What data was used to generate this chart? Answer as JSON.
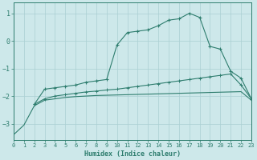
{
  "line1_x": [
    0,
    1,
    2,
    3,
    4,
    5,
    6,
    7,
    8,
    9,
    10,
    11,
    12,
    13,
    14,
    15,
    16,
    17,
    18,
    19,
    20,
    21,
    22,
    23
  ],
  "line1_y": [
    -3.4,
    -3.05,
    -2.35,
    -2.15,
    -2.1,
    -2.05,
    -2.02,
    -2.0,
    -1.98,
    -1.97,
    -1.96,
    -1.95,
    -1.94,
    -1.93,
    -1.92,
    -1.91,
    -1.9,
    -1.89,
    -1.88,
    -1.87,
    -1.86,
    -1.85,
    -1.84,
    -2.15
  ],
  "line2_x": [
    2,
    3,
    4,
    5,
    6,
    7,
    8,
    9,
    10,
    11,
    12,
    13,
    14,
    15,
    16,
    17,
    18,
    19,
    20,
    21,
    22,
    23
  ],
  "line2_y": [
    -2.3,
    -1.75,
    -1.7,
    -1.65,
    -1.6,
    -1.5,
    -1.45,
    -1.4,
    -0.15,
    0.3,
    0.35,
    0.4,
    0.55,
    0.75,
    0.8,
    1.0,
    0.85,
    -0.2,
    -0.3,
    -1.1,
    -1.35,
    -2.1
  ],
  "line3_x": [
    2,
    3,
    4,
    5,
    6,
    7,
    8,
    9,
    10,
    11,
    12,
    13,
    14,
    15,
    16,
    17,
    18,
    19,
    20,
    21,
    22,
    23
  ],
  "line3_y": [
    -2.3,
    -2.1,
    -2.0,
    -1.95,
    -1.9,
    -1.85,
    -1.82,
    -1.78,
    -1.75,
    -1.7,
    -1.65,
    -1.6,
    -1.55,
    -1.5,
    -1.45,
    -1.4,
    -1.35,
    -1.3,
    -1.25,
    -1.2,
    -1.6,
    -2.1
  ],
  "color": "#2e7d6e",
  "bg_color": "#cde8ea",
  "grid_color": "#aacfd3",
  "xlabel": "Humidex (Indice chaleur)",
  "xlim": [
    0,
    23
  ],
  "ylim": [
    -3.6,
    1.4
  ],
  "yticks": [
    -3,
    -2,
    -1,
    0,
    1
  ],
  "xticks": [
    0,
    1,
    2,
    3,
    4,
    5,
    6,
    7,
    8,
    9,
    10,
    11,
    12,
    13,
    14,
    15,
    16,
    17,
    18,
    19,
    20,
    21,
    22,
    23
  ]
}
